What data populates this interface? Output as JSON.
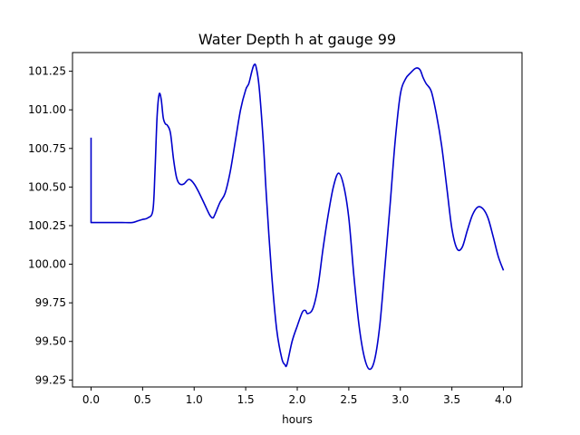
{
  "chart_data": {
    "type": "line",
    "title": "Water Depth h at gauge 99",
    "xlabel": "hours",
    "ylabel": "",
    "xlim": [
      -0.18,
      4.18
    ],
    "ylim": [
      99.205,
      101.371
    ],
    "grid": false,
    "x_ticks": [
      {
        "value": 0.0,
        "label": "0.0"
      },
      {
        "value": 0.5,
        "label": "0.5"
      },
      {
        "value": 1.0,
        "label": "1.0"
      },
      {
        "value": 1.5,
        "label": "1.5"
      },
      {
        "value": 2.0,
        "label": "2.0"
      },
      {
        "value": 2.5,
        "label": "2.5"
      },
      {
        "value": 3.0,
        "label": "3.0"
      },
      {
        "value": 3.5,
        "label": "3.5"
      },
      {
        "value": 4.0,
        "label": "4.0"
      }
    ],
    "y_ticks": [
      {
        "value": 99.25,
        "label": "99.25"
      },
      {
        "value": 99.5,
        "label": "99.50"
      },
      {
        "value": 99.75,
        "label": "99.75"
      },
      {
        "value": 100.0,
        "label": "100.00"
      },
      {
        "value": 100.25,
        "label": "100.25"
      },
      {
        "value": 100.5,
        "label": "100.50"
      },
      {
        "value": 100.75,
        "label": "100.75"
      },
      {
        "value": 101.0,
        "label": "101.00"
      },
      {
        "value": 101.25,
        "label": "101.25"
      }
    ],
    "series": [
      {
        "color": "#0000cc",
        "x": [
          0.0,
          0.0,
          0.1,
          0.2,
          0.3,
          0.4,
          0.45,
          0.5,
          0.55,
          0.6,
          0.62,
          0.64,
          0.66,
          0.68,
          0.7,
          0.72,
          0.74,
          0.77,
          0.8,
          0.83,
          0.86,
          0.9,
          0.95,
          1.0,
          1.05,
          1.1,
          1.15,
          1.18,
          1.2,
          1.25,
          1.3,
          1.35,
          1.4,
          1.45,
          1.5,
          1.53,
          1.56,
          1.58,
          1.6,
          1.63,
          1.67,
          1.7,
          1.75,
          1.8,
          1.85,
          1.88,
          1.9,
          1.95,
          2.0,
          2.05,
          2.08,
          2.1,
          2.15,
          2.2,
          2.25,
          2.3,
          2.35,
          2.4,
          2.45,
          2.5,
          2.55,
          2.6,
          2.65,
          2.7,
          2.75,
          2.8,
          2.85,
          2.9,
          2.95,
          3.0,
          3.05,
          3.1,
          3.15,
          3.19,
          3.22,
          3.25,
          3.3,
          3.35,
          3.4,
          3.45,
          3.5,
          3.55,
          3.6,
          3.65,
          3.7,
          3.75,
          3.8,
          3.85,
          3.9,
          3.95,
          4.0
        ],
        "y": [
          100.82,
          100.27,
          100.27,
          100.27,
          100.27,
          100.27,
          100.28,
          100.29,
          100.3,
          100.35,
          100.6,
          100.95,
          101.1,
          101.07,
          100.95,
          100.91,
          100.9,
          100.85,
          100.68,
          100.56,
          100.52,
          100.52,
          100.55,
          100.52,
          100.46,
          100.39,
          100.32,
          100.3,
          100.32,
          100.4,
          100.46,
          100.6,
          100.8,
          101.0,
          101.13,
          101.17,
          101.25,
          101.29,
          101.28,
          101.15,
          100.8,
          100.45,
          99.95,
          99.58,
          99.39,
          99.35,
          99.35,
          99.5,
          99.6,
          99.69,
          99.7,
          99.68,
          99.71,
          99.85,
          100.1,
          100.32,
          100.5,
          100.59,
          100.51,
          100.3,
          99.92,
          99.6,
          99.4,
          99.32,
          99.38,
          99.6,
          99.98,
          100.38,
          100.8,
          101.1,
          101.2,
          101.24,
          101.27,
          101.26,
          101.21,
          101.17,
          101.12,
          100.97,
          100.77,
          100.5,
          100.23,
          100.1,
          100.11,
          100.22,
          100.32,
          100.37,
          100.36,
          100.3,
          100.18,
          100.05,
          99.96
        ]
      }
    ]
  }
}
